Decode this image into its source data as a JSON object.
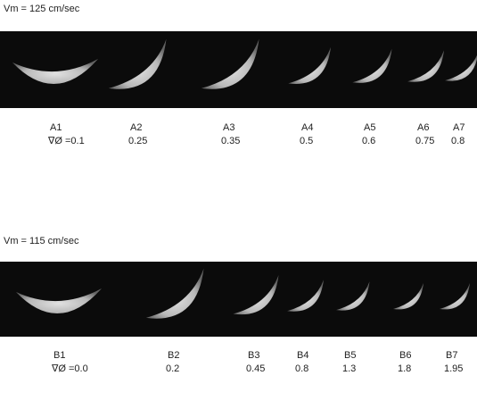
{
  "panels": [
    {
      "title": "Vm = 125 cm/sec",
      "items": [
        {
          "label": "A1",
          "value": "∇Ø =0.1"
        },
        {
          "label": "A2",
          "value": "0.25"
        },
        {
          "label": "A3",
          "value": "0.35"
        },
        {
          "label": "A4",
          "value": "0.5"
        },
        {
          "label": "A5",
          "value": "0.6"
        },
        {
          "label": "A6",
          "value": "0.75"
        },
        {
          "label": "A7",
          "value": "0.8"
        }
      ]
    },
    {
      "title": "Vm = 115 cm/sec",
      "items": [
        {
          "label": "B1",
          "value": "∇Ø =0.0"
        },
        {
          "label": "B2",
          "value": "0.2"
        },
        {
          "label": "B3",
          "value": "0.45"
        },
        {
          "label": "B4",
          "value": "0.8"
        },
        {
          "label": "B5",
          "value": "1.3"
        },
        {
          "label": "B6",
          "value": "1.8"
        },
        {
          "label": "B7",
          "value": "1.95"
        }
      ]
    }
  ]
}
